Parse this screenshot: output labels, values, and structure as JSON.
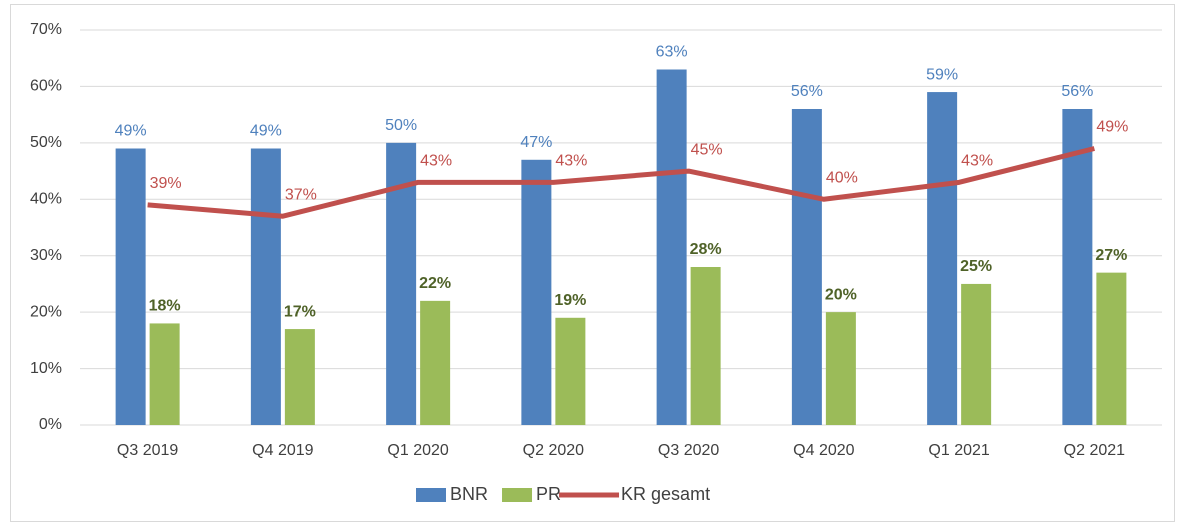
{
  "chart_data": {
    "type": "bar",
    "categories": [
      "Q3 2019",
      "Q4 2019",
      "Q1 2020",
      "Q2 2020",
      "Q3 2020",
      "Q4 2020",
      "Q1 2021",
      "Q2 2021"
    ],
    "series": [
      {
        "name": "BNR",
        "color": "#4f81bd",
        "label_color": "#4f81bd",
        "values": [
          49,
          49,
          50,
          47,
          63,
          56,
          59,
          56
        ],
        "value_labels": [
          "49%",
          "49%",
          "50%",
          "47%",
          "63%",
          "56%",
          "59%",
          "56%"
        ]
      },
      {
        "name": "PR",
        "color": "#9bbb59",
        "label_color": "#4f6228",
        "values": [
          18,
          17,
          22,
          19,
          28,
          20,
          25,
          27
        ],
        "value_labels": [
          "18%",
          "17%",
          "22%",
          "19%",
          "28%",
          "20%",
          "25%",
          "27%"
        ]
      },
      {
        "name": "KR gesamt",
        "type": "line",
        "color": "#c0504d",
        "label_color": "#c0504d",
        "values": [
          39,
          37,
          43,
          43,
          45,
          40,
          43,
          49
        ],
        "value_labels": [
          "39%",
          "37%",
          "43%",
          "43%",
          "45%",
          "40%",
          "43%",
          "49%"
        ]
      }
    ],
    "ylim": [
      0,
      70
    ],
    "yticks": [
      {
        "value": 0,
        "label": "0%"
      },
      {
        "value": 10,
        "label": "10%"
      },
      {
        "value": 20,
        "label": "20%"
      },
      {
        "value": 30,
        "label": "30%"
      },
      {
        "value": 40,
        "label": "40%"
      },
      {
        "value": 50,
        "label": "50%"
      },
      {
        "value": 60,
        "label": "60%"
      },
      {
        "value": 70,
        "label": "70%"
      }
    ],
    "grid": true,
    "legend": "bottom"
  }
}
